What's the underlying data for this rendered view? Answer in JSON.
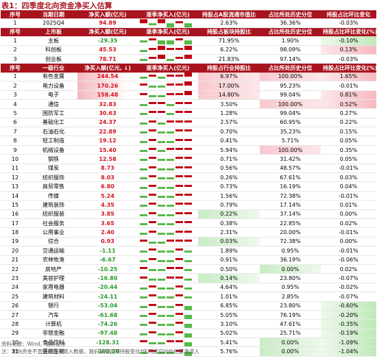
{
  "title": "表1：四季度北向资金净买入估算",
  "headers": {
    "quarter": [
      "序号",
      "当期日期",
      "净买入额(亿元)",
      "逐季净买入(亿元)",
      "持股占A股流通市值比",
      "占比所处历史分位",
      "持股占比环比变化"
    ],
    "board": [
      "序号",
      "上市板",
      "净买入额(亿元)",
      "逐季净买入(亿元)",
      "持股占板块持股比",
      "占比所处历史分位",
      "持股占比环比变化(%)"
    ],
    "industry": [
      "序号",
      "一级行业",
      "净买入额(亿元, ↓)",
      "逐季净买入(亿元)",
      "持股占行业持股比",
      "占比所处历史分位",
      "持股占比环比变化(%)"
    ]
  },
  "quarter_rows": [
    {
      "idx": "1",
      "name": "2025Q4",
      "net": "94.89",
      "flow": [
        2,
        -1,
        2,
        -2,
        1,
        -2
      ],
      "pct": "2.63%",
      "hist": "36.36%",
      "chg": "-0.03%"
    }
  ],
  "board_rows": [
    {
      "idx": "1",
      "name": "主板",
      "net": "-29.35",
      "flow": [
        -1,
        1,
        -2,
        -2,
        1,
        -2
      ],
      "pct": "71.95%",
      "hist": "1.90%",
      "chg": "-0.10%"
    },
    {
      "idx": "2",
      "name": "科创板",
      "net": "45.53",
      "flow": [
        -1,
        1,
        2,
        1,
        1,
        2
      ],
      "pct": "6.22%",
      "hist": "98.09%",
      "chg": "0.13%"
    },
    {
      "idx": "3",
      "name": "创业板",
      "net": "78.71",
      "flow": [
        -1,
        1,
        2,
        -1,
        1,
        2
      ],
      "pct": "21.83%",
      "hist": "97.14%",
      "chg": "-0.03%"
    }
  ],
  "industry_rows": [
    {
      "idx": "1",
      "name": "有色金属",
      "net": "244.54",
      "flow": [
        -1,
        1,
        -1,
        1,
        1,
        2
      ],
      "pct": "6.97%",
      "hist": "100.00%",
      "chg": "1.65%"
    },
    {
      "idx": "2",
      "name": "电力设备",
      "net": "170.26",
      "flow": [
        1,
        -1,
        -1,
        1,
        1,
        2
      ],
      "pct": "17.00%",
      "hist": "95.23%",
      "chg": "-0.01%"
    },
    {
      "idx": "3",
      "name": "电子",
      "net": "158.48",
      "flow": [
        1,
        -1,
        -1,
        1,
        1,
        2
      ],
      "pct": "14.80%",
      "hist": "99.04%",
      "chg": "0.81%"
    },
    {
      "idx": "4",
      "name": "通信",
      "net": "32.83",
      "flow": [
        -1,
        1,
        1,
        -1,
        1,
        1
      ],
      "pct": "3.50%",
      "hist": "100.00%",
      "chg": "0.52%"
    },
    {
      "idx": "5",
      "name": "国防军工",
      "net": "30.63",
      "flow": [
        -1,
        1,
        1,
        -1,
        1,
        1
      ],
      "pct": "1.28%",
      "hist": "99.04%",
      "chg": "0.27%"
    },
    {
      "idx": "6",
      "name": "基础化工",
      "net": "24.37",
      "flow": [
        -1,
        1,
        -1,
        1,
        1,
        1
      ],
      "pct": "2.57%",
      "hist": "60.95%",
      "chg": "0.22%"
    },
    {
      "idx": "7",
      "name": "石油石化",
      "net": "22.89",
      "flow": [
        -1,
        1,
        -1,
        -1,
        1,
        1
      ],
      "pct": "0.70%",
      "hist": "35.23%",
      "chg": "0.15%"
    },
    {
      "idx": "8",
      "name": "轻工制造",
      "net": "19.12",
      "flow": [
        -1,
        1,
        -1,
        -1,
        1,
        1
      ],
      "pct": "0.41%",
      "hist": "5.71%",
      "chg": "0.05%"
    },
    {
      "idx": "9",
      "name": "机械设备",
      "net": "15.40",
      "flow": [
        -1,
        1,
        -1,
        1,
        1,
        1
      ],
      "pct": "5.94%",
      "hist": "100.00%",
      "chg": "0.35%"
    },
    {
      "idx": "10",
      "name": "钢铁",
      "net": "12.58",
      "flow": [
        -1,
        1,
        -1,
        -1,
        1,
        1
      ],
      "pct": "0.71%",
      "hist": "31.42%",
      "chg": "0.05%"
    },
    {
      "idx": "11",
      "name": "煤炭",
      "net": "8.73",
      "flow": [
        -1,
        1,
        -1,
        -1,
        1,
        1
      ],
      "pct": "0.56%",
      "hist": "48.57%",
      "chg": "-0.01%"
    },
    {
      "idx": "12",
      "name": "纺织服饰",
      "net": "8.03",
      "flow": [
        -1,
        1,
        -1,
        -1,
        1,
        1
      ],
      "pct": "0.26%",
      "hist": "67.61%",
      "chg": "0.03%"
    },
    {
      "idx": "13",
      "name": "商贸零售",
      "net": "6.80",
      "flow": [
        -1,
        1,
        -1,
        -1,
        1,
        1
      ],
      "pct": "0.73%",
      "hist": "16.19%",
      "chg": "0.04%"
    },
    {
      "idx": "14",
      "name": "传媒",
      "net": "5.24",
      "flow": [
        -1,
        1,
        -1,
        -1,
        1,
        1
      ],
      "pct": "1.56%",
      "hist": "72.38%",
      "chg": "-0.01%"
    },
    {
      "idx": "15",
      "name": "建筑装饰",
      "net": "4.35",
      "flow": [
        -1,
        1,
        -1,
        -1,
        1,
        1
      ],
      "pct": "0.79%",
      "hist": "17.14%",
      "chg": "0.01%"
    },
    {
      "idx": "16",
      "name": "纺织服装",
      "net": "3.85",
      "flow": [
        -1,
        1,
        -1,
        -1,
        1,
        1
      ],
      "pct": "0.22%",
      "hist": "37.14%",
      "chg": "0.00%"
    },
    {
      "idx": "17",
      "name": "社会服务",
      "net": "3.65",
      "flow": [
        -1,
        1,
        -1,
        -1,
        1,
        1
      ],
      "pct": "0.38%",
      "hist": "22.85%",
      "chg": "0.02%"
    },
    {
      "idx": "18",
      "name": "公用事业",
      "net": "2.40",
      "flow": [
        -1,
        1,
        -1,
        -1,
        1,
        1
      ],
      "pct": "2.31%",
      "hist": "20.00%",
      "chg": "-0.01%"
    },
    {
      "idx": "19",
      "name": "综合",
      "net": "0.93",
      "flow": [
        1,
        -1,
        -1,
        1,
        1,
        1
      ],
      "pct": "0.03%",
      "hist": "72.38%",
      "chg": "0.00%"
    },
    {
      "idx": "20",
      "name": "交通运输",
      "net": "-1.11",
      "flow": [
        -1,
        1,
        -1,
        -1,
        1,
        -1
      ],
      "pct": "1.89%",
      "hist": "0.95%",
      "chg": "-0.01%"
    },
    {
      "idx": "21",
      "name": "农林牧渔",
      "net": "-6.67",
      "flow": [
        -1,
        1,
        -1,
        -1,
        1,
        -1
      ],
      "pct": "0.91%",
      "hist": "36.19%",
      "chg": "-0.06%"
    },
    {
      "idx": "22",
      "name": "房地产",
      "net": "-10.25",
      "flow": [
        1,
        -1,
        -1,
        1,
        1,
        -1
      ],
      "pct": "0.50%",
      "hist": "0.00%",
      "chg": "0.02%"
    },
    {
      "idx": "23",
      "name": "美容护理",
      "net": "-16.80",
      "flow": [
        1,
        -1,
        -1,
        1,
        1,
        -1
      ],
      "pct": "0.14%",
      "hist": "23.80%",
      "chg": "-0.07%"
    },
    {
      "idx": "24",
      "name": "家用电器",
      "net": "-20.44",
      "flow": [
        -1,
        1,
        -1,
        -1,
        1,
        -1
      ],
      "pct": "4.64%",
      "hist": "0.95%",
      "chg": "-0.02%"
    },
    {
      "idx": "25",
      "name": "建筑材料",
      "net": "-24.11",
      "flow": [
        -1,
        1,
        -1,
        -1,
        1,
        -1
      ],
      "pct": "1.01%",
      "hist": "2.85%",
      "chg": "-0.07%"
    },
    {
      "idx": "26",
      "name": "银行",
      "net": "-53.04",
      "flow": [
        -1,
        1,
        -1,
        -1,
        1,
        -2
      ],
      "pct": "6.85%",
      "hist": "23.80%",
      "chg": "-0.60%"
    },
    {
      "idx": "27",
      "name": "汽车",
      "net": "-61.68",
      "flow": [
        -1,
        1,
        -1,
        -1,
        1,
        -2
      ],
      "pct": "5.05%",
      "hist": "76.19%",
      "chg": "-0.20%"
    },
    {
      "idx": "28",
      "name": "计算机",
      "net": "-74.26",
      "flow": [
        -1,
        1,
        -1,
        -1,
        1,
        -2
      ],
      "pct": "3.10%",
      "hist": "47.61%",
      "chg": "-0.35%"
    },
    {
      "idx": "29",
      "name": "非银金融",
      "net": "-97.48",
      "flow": [
        -1,
        1,
        -1,
        -1,
        1,
        -2
      ],
      "pct": "5.02%",
      "hist": "25.71%",
      "chg": "-0.19%"
    },
    {
      "idx": "30",
      "name": "食品饮料",
      "net": "-128.31",
      "flow": [
        1,
        -1,
        -1,
        1,
        1,
        -2
      ],
      "pct": "5.41%",
      "hist": "0.00%",
      "chg": "-1.09%"
    },
    {
      "idx": "31",
      "name": "医药生物",
      "net": "-160.20",
      "flow": [
        -1,
        1,
        -1,
        -1,
        1,
        -2
      ],
      "pct": "5.76%",
      "hist": "0.00%",
      "chg": "-1.04%"
    }
  ],
  "footer": {
    "source": "资料来源：Wind、招商证券",
    "note": "注：北向资金不直接披露净流入数据，我们采用区间持股变化*区间成交均价估算净流入"
  },
  "colors": {
    "header_bg": "#a8141e",
    "pos": "#c00014",
    "neg": "#58b848"
  }
}
